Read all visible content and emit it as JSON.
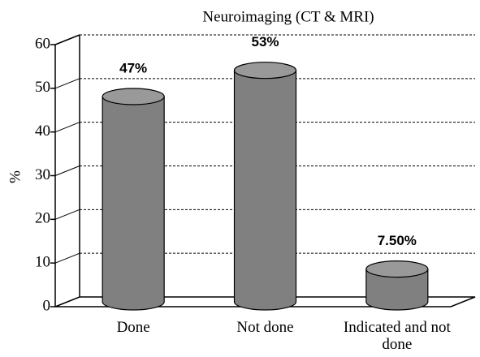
{
  "chart_data": {
    "type": "bar3d",
    "title": "Neuroimaging (CT & MRI)",
    "y_label": "%",
    "categories": [
      "Done",
      "Not done",
      "Indicated and not done"
    ],
    "values": [
      47,
      53,
      7.5
    ],
    "value_labels": [
      "47%",
      "53%",
      "7.50%"
    ],
    "color": "#808080",
    "ylim": [
      0,
      60
    ],
    "yticks": [
      0,
      10,
      20,
      30,
      40,
      50,
      60
    ],
    "grid": true
  }
}
